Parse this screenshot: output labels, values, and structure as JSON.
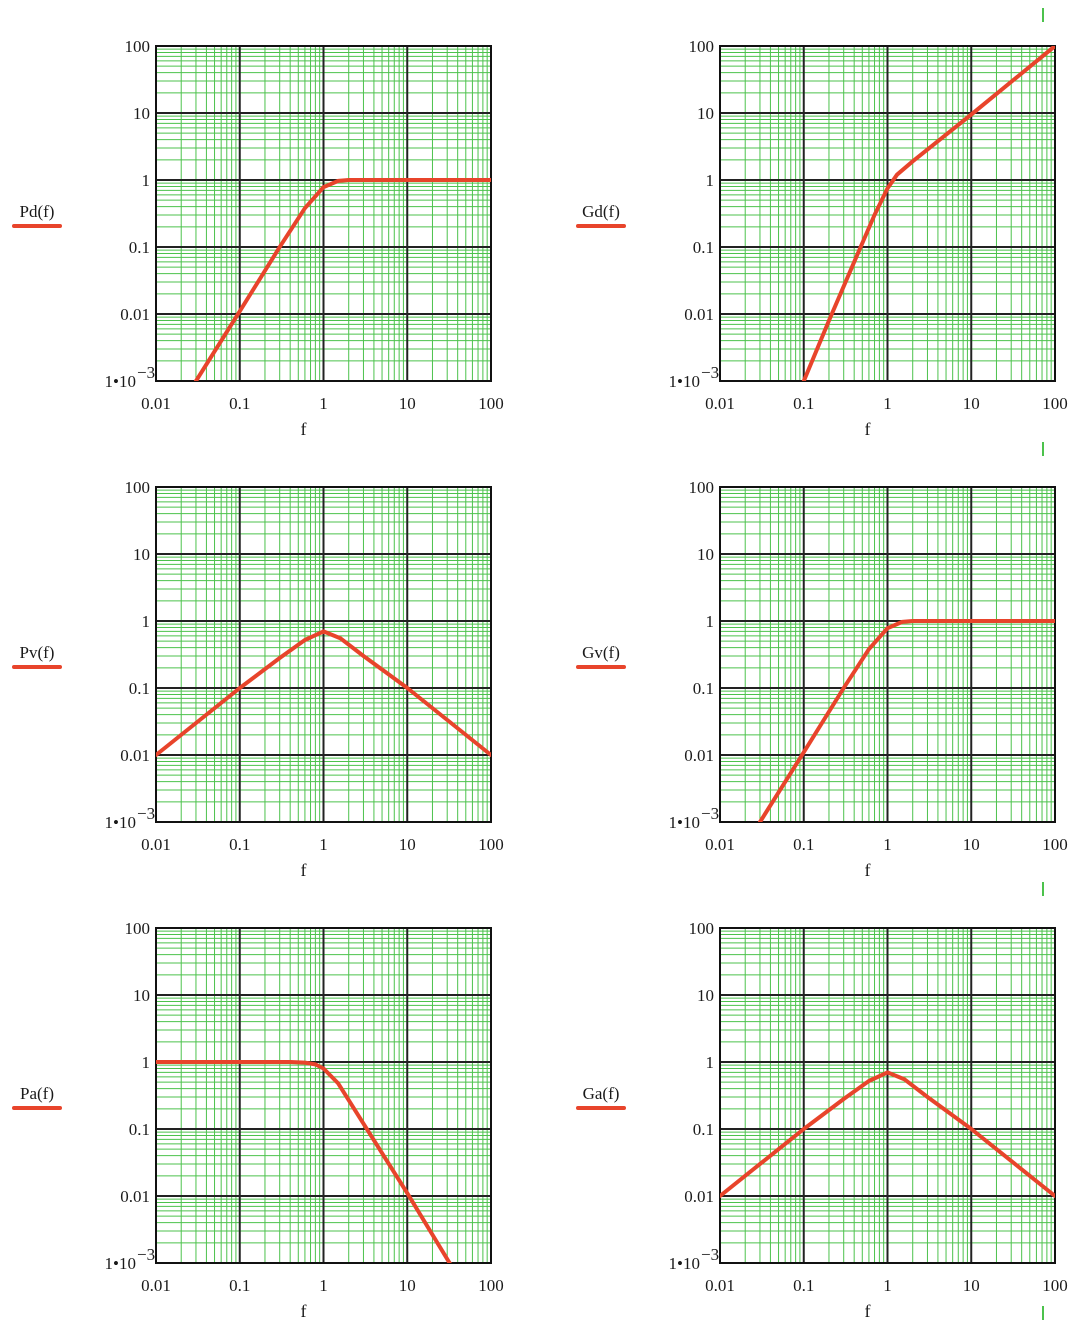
{
  "colors": {
    "curve": "#e8442b",
    "grid_minor": "#4cc24c",
    "grid_major": "#222222",
    "frame": "#111111",
    "plot_bg": "#ffffff",
    "marker": "#4cc24c"
  },
  "x_ticks": [
    "0.01",
    "0.1",
    "1",
    "10",
    "100"
  ],
  "y_ticks": [
    "1•10",
    "0.01",
    "0.1",
    "1",
    "10",
    "100"
  ],
  "y_tick_exponent": "−3",
  "chart_data": [
    {
      "type": "line",
      "title": "",
      "xlabel": "f",
      "ylabel": "Pd(f)",
      "xscale": "log",
      "yscale": "log",
      "xlim": [
        0.01,
        100
      ],
      "ylim": [
        0.001,
        100
      ],
      "grid": true,
      "legend": "left",
      "series": [
        {
          "name": "Pd(f)",
          "x": [
            0.03,
            0.1,
            0.3,
            0.6,
            1.0,
            1.5,
            2,
            3,
            10,
            100
          ],
          "y": [
            0.001,
            0.011,
            0.1,
            0.38,
            0.78,
            0.97,
            1.0,
            1.0,
            1.0,
            1.0
          ]
        }
      ]
    },
    {
      "type": "line",
      "title": "",
      "xlabel": "f",
      "ylabel": "Gd(f)",
      "xscale": "log",
      "yscale": "log",
      "xlim": [
        0.01,
        100
      ],
      "ylim": [
        0.001,
        100
      ],
      "grid": true,
      "legend": "left",
      "series": [
        {
          "name": "Gd(f)",
          "x": [
            0.1,
            0.2,
            0.4,
            0.7,
            1.0,
            1.3,
            2,
            10,
            100
          ],
          "y": [
            0.001,
            0.008,
            0.06,
            0.3,
            0.75,
            1.2,
            1.9,
            9.5,
            100
          ]
        }
      ]
    },
    {
      "type": "line",
      "title": "",
      "xlabel": "f",
      "ylabel": "Pv(f)",
      "xscale": "log",
      "yscale": "log",
      "xlim": [
        0.01,
        100
      ],
      "ylim": [
        0.001,
        100
      ],
      "grid": true,
      "legend": "left",
      "series": [
        {
          "name": "Pv(f)",
          "x": [
            0.01,
            0.1,
            0.3,
            0.6,
            1.0,
            1.6,
            3,
            10,
            100
          ],
          "y": [
            0.01,
            0.1,
            0.28,
            0.52,
            0.7,
            0.55,
            0.3,
            0.1,
            0.01
          ]
        }
      ]
    },
    {
      "type": "line",
      "title": "",
      "xlabel": "f",
      "ylabel": "Gv(f)",
      "xscale": "log",
      "yscale": "log",
      "xlim": [
        0.01,
        100
      ],
      "ylim": [
        0.001,
        100
      ],
      "grid": true,
      "legend": "left",
      "series": [
        {
          "name": "Gv(f)",
          "x": [
            0.03,
            0.1,
            0.3,
            0.6,
            1.0,
            1.5,
            2,
            3,
            10,
            100
          ],
          "y": [
            0.001,
            0.011,
            0.1,
            0.38,
            0.78,
            0.97,
            1.0,
            1.0,
            1.0,
            1.0
          ]
        }
      ]
    },
    {
      "type": "line",
      "title": "",
      "xlabel": "f",
      "ylabel": "Pa(f)",
      "xscale": "log",
      "yscale": "log",
      "xlim": [
        0.01,
        100
      ],
      "ylim": [
        0.001,
        100
      ],
      "grid": true,
      "legend": "left",
      "series": [
        {
          "name": "Pa(f)",
          "x": [
            0.01,
            0.1,
            0.4,
            0.6,
            0.8,
            1.0,
            1.5,
            3,
            10,
            32
          ],
          "y": [
            1.0,
            1.0,
            1.0,
            0.98,
            0.92,
            0.8,
            0.48,
            0.12,
            0.011,
            0.001
          ]
        }
      ]
    },
    {
      "type": "line",
      "title": "",
      "xlabel": "f",
      "ylabel": "Ga(f)",
      "xscale": "log",
      "yscale": "log",
      "xlim": [
        0.01,
        100
      ],
      "ylim": [
        0.001,
        100
      ],
      "grid": true,
      "legend": "left",
      "series": [
        {
          "name": "Ga(f)",
          "x": [
            0.01,
            0.1,
            0.3,
            0.6,
            1.0,
            1.6,
            3,
            10,
            100
          ],
          "y": [
            0.01,
            0.1,
            0.28,
            0.52,
            0.7,
            0.55,
            0.3,
            0.1,
            0.01
          ]
        }
      ]
    }
  ]
}
